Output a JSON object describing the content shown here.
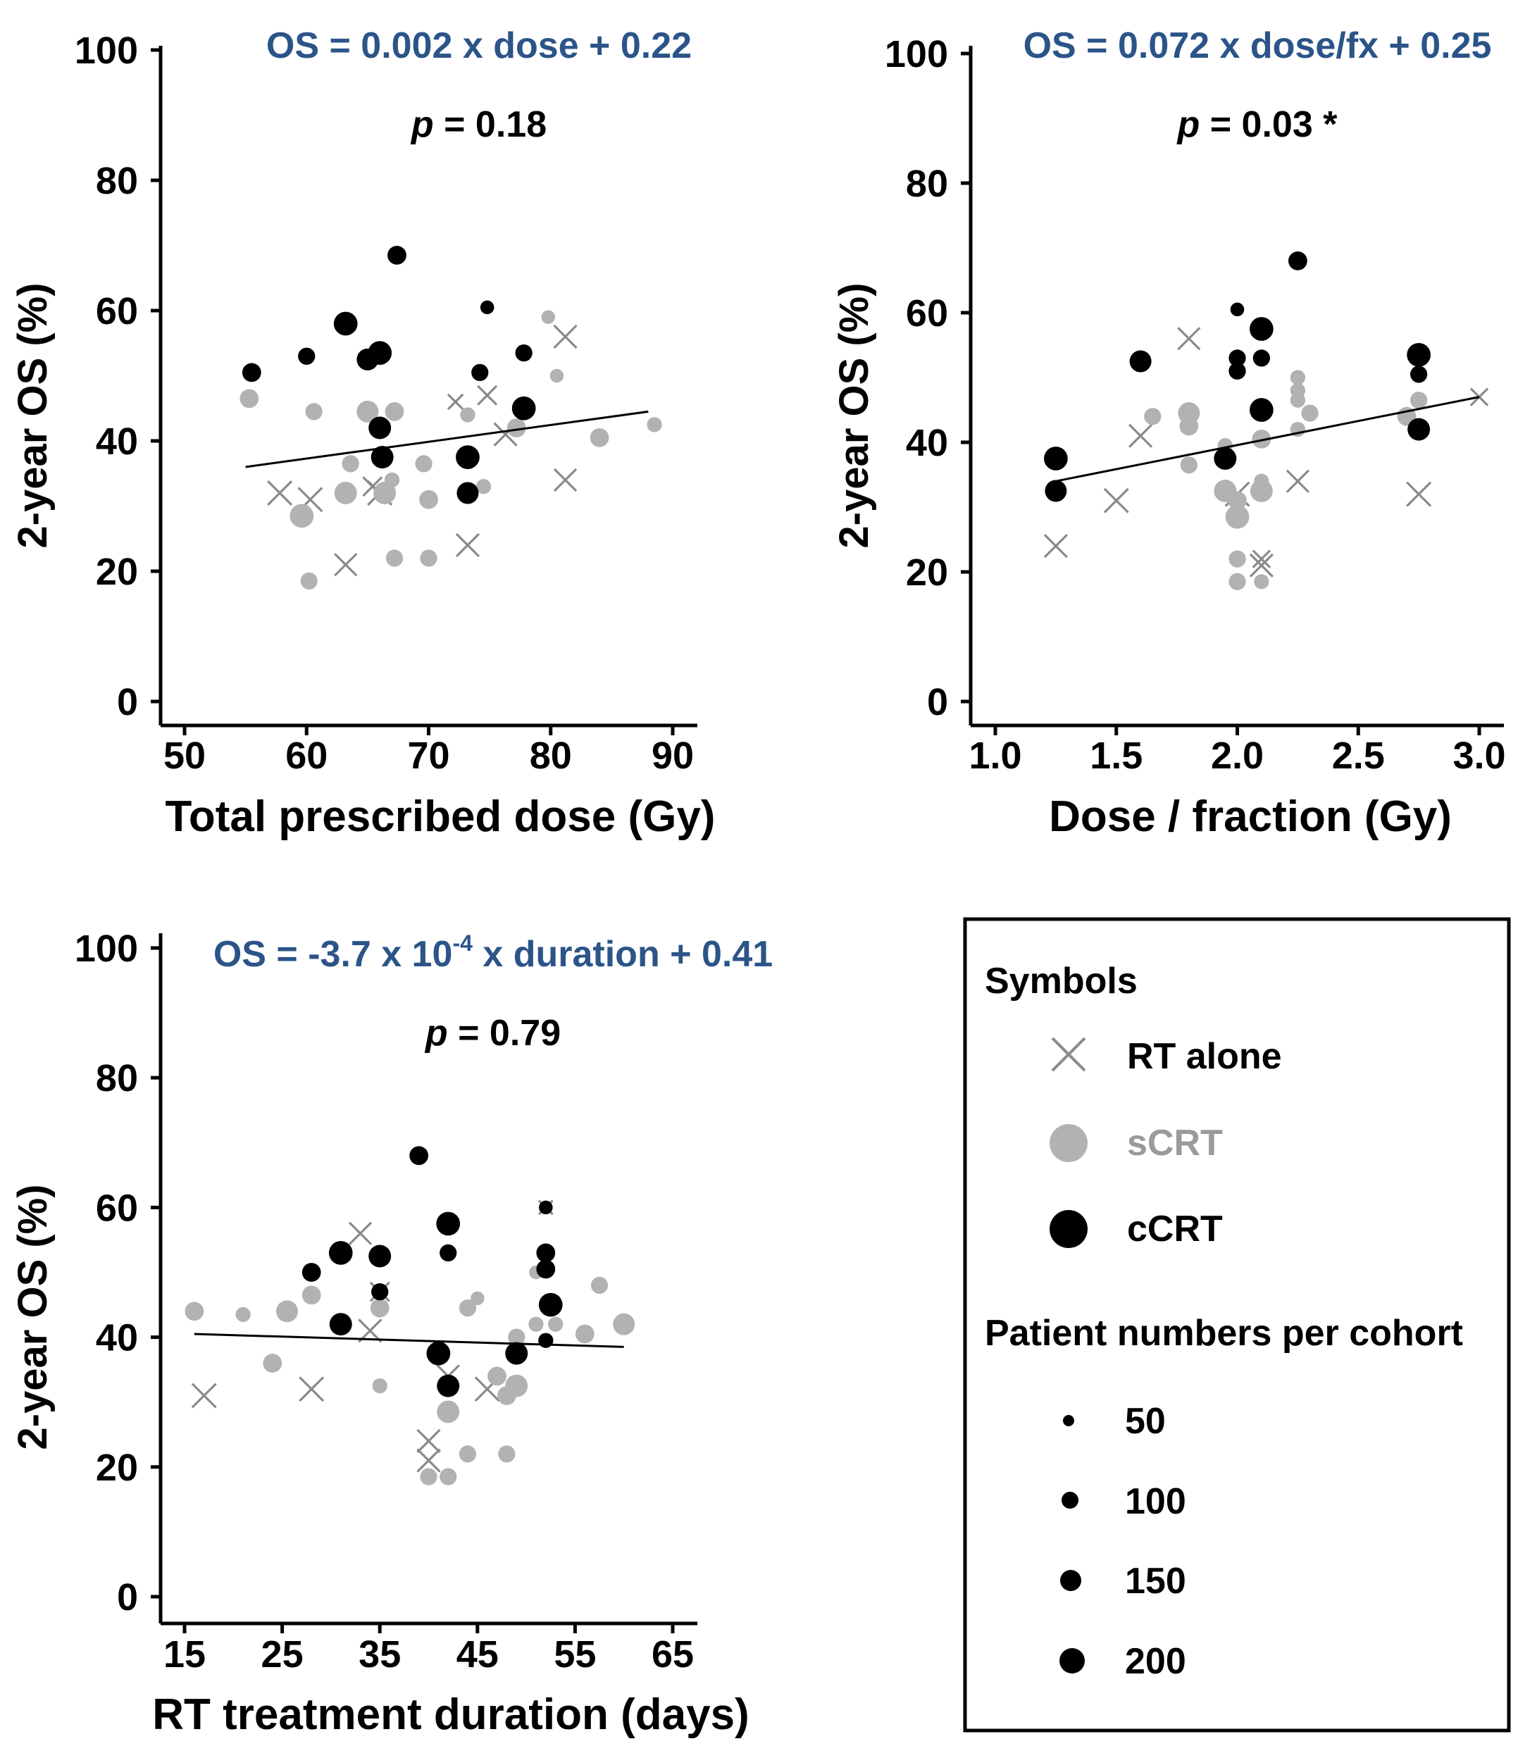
{
  "colors": {
    "rt": "#8a8a8a",
    "scrt": "#b2b2b2",
    "ccrt": "#000000",
    "equation": "#2b5488"
  },
  "chart_data": [
    {
      "type": "scatter",
      "xlabel": "Total prescribed dose (Gy)",
      "ylabel": "2-year OS (%)",
      "xlim": [
        50,
        90
      ],
      "ylim": [
        0,
        100
      ],
      "xticks": [
        50,
        60,
        70,
        80,
        90
      ],
      "yticks": [
        0,
        20,
        40,
        60,
        80,
        100
      ],
      "equation": "OS = 0.002 x dose + 0.22",
      "p_label": "p",
      "p_value": " = 0.18",
      "trend": {
        "x": [
          55,
          88
        ],
        "y": [
          36,
          44.5
        ]
      },
      "series": [
        {
          "name": "RT alone",
          "marker": "x",
          "points": [
            {
              "x": 57.8,
              "y": 32,
              "n": 150
            },
            {
              "x": 60.3,
              "y": 31,
              "n": 150
            },
            {
              "x": 63.2,
              "y": 21,
              "n": 120
            },
            {
              "x": 66,
              "y": 32,
              "n": 150
            },
            {
              "x": 73.2,
              "y": 24,
              "n": 130
            },
            {
              "x": 74.8,
              "y": 47,
              "n": 80
            },
            {
              "x": 76.3,
              "y": 41,
              "n": 130
            },
            {
              "x": 81.2,
              "y": 56,
              "n": 130
            },
            {
              "x": 81.2,
              "y": 34,
              "n": 120
            },
            {
              "x": 72.2,
              "y": 46,
              "n": 40
            },
            {
              "x": 65.4,
              "y": 33,
              "n": 80
            }
          ]
        },
        {
          "name": "sCRT",
          "marker": "circle",
          "points": [
            {
              "x": 55.3,
              "y": 46.5,
              "n": 80
            },
            {
              "x": 59.6,
              "y": 28.5,
              "n": 150
            },
            {
              "x": 60.2,
              "y": 18.5,
              "n": 60
            },
            {
              "x": 60.6,
              "y": 44.5,
              "n": 60
            },
            {
              "x": 63.2,
              "y": 32,
              "n": 130
            },
            {
              "x": 63.6,
              "y": 36.5,
              "n": 60
            },
            {
              "x": 65,
              "y": 44.5,
              "n": 120
            },
            {
              "x": 66.4,
              "y": 32,
              "n": 130
            },
            {
              "x": 67,
              "y": 34,
              "n": 40
            },
            {
              "x": 67.2,
              "y": 44.5,
              "n": 80
            },
            {
              "x": 67.2,
              "y": 22,
              "n": 60
            },
            {
              "x": 69.6,
              "y": 36.5,
              "n": 60
            },
            {
              "x": 70,
              "y": 31,
              "n": 80
            },
            {
              "x": 70,
              "y": 22,
              "n": 60
            },
            {
              "x": 73.2,
              "y": 44,
              "n": 40
            },
            {
              "x": 74.5,
              "y": 33,
              "n": 40
            },
            {
              "x": 77.2,
              "y": 42,
              "n": 80
            },
            {
              "x": 80.5,
              "y": 50,
              "n": 30
            },
            {
              "x": 84,
              "y": 40.5,
              "n": 80
            },
            {
              "x": 88.5,
              "y": 42.5,
              "n": 40
            },
            {
              "x": 79.8,
              "y": 59,
              "n": 30
            }
          ]
        },
        {
          "name": "cCRT",
          "marker": "circle",
          "points": [
            {
              "x": 55.5,
              "y": 50.5,
              "n": 80
            },
            {
              "x": 60,
              "y": 53,
              "n": 60
            },
            {
              "x": 63.2,
              "y": 58,
              "n": 150
            },
            {
              "x": 65,
              "y": 52.5,
              "n": 120
            },
            {
              "x": 66,
              "y": 53.5,
              "n": 150
            },
            {
              "x": 66,
              "y": 42,
              "n": 130
            },
            {
              "x": 66.2,
              "y": 37.5,
              "n": 130
            },
            {
              "x": 67.4,
              "y": 68.5,
              "n": 80
            },
            {
              "x": 73.2,
              "y": 37.5,
              "n": 150
            },
            {
              "x": 73.2,
              "y": 32,
              "n": 120
            },
            {
              "x": 74.2,
              "y": 50.5,
              "n": 60
            },
            {
              "x": 74.8,
              "y": 60.5,
              "n": 30
            },
            {
              "x": 77.8,
              "y": 45,
              "n": 150
            },
            {
              "x": 77.8,
              "y": 53.5,
              "n": 60
            }
          ]
        }
      ]
    },
    {
      "type": "scatter",
      "xlabel": "Dose / fraction (Gy)",
      "ylabel": "2-year OS (%)",
      "xlim": [
        1.0,
        3.0
      ],
      "ylim": [
        0,
        100
      ],
      "xticks": [
        1.0,
        1.5,
        2.0,
        2.5,
        3.0
      ],
      "yticks": [
        0,
        20,
        40,
        60,
        80,
        100
      ],
      "equation": "OS = 0.072 x dose/fx + 0.25",
      "p_label": "p",
      "p_value": " = 0.03 *",
      "trend": {
        "x": [
          1.25,
          3.0
        ],
        "y": [
          34,
          47
        ]
      },
      "series": [
        {
          "name": "RT alone",
          "marker": "x",
          "points": [
            {
              "x": 1.25,
              "y": 24,
              "n": 130
            },
            {
              "x": 1.5,
              "y": 31,
              "n": 150
            },
            {
              "x": 1.6,
              "y": 41,
              "n": 130
            },
            {
              "x": 1.8,
              "y": 56,
              "n": 120
            },
            {
              "x": 2.0,
              "y": 32,
              "n": 150
            },
            {
              "x": 2.1,
              "y": 21,
              "n": 130
            },
            {
              "x": 2.25,
              "y": 34,
              "n": 120
            },
            {
              "x": 2.75,
              "y": 32,
              "n": 150
            },
            {
              "x": 3.0,
              "y": 47,
              "n": 60
            },
            {
              "x": 2.1,
              "y": 22,
              "n": 60
            }
          ]
        },
        {
          "name": "sCRT",
          "marker": "circle",
          "points": [
            {
              "x": 1.65,
              "y": 44,
              "n": 60
            },
            {
              "x": 1.8,
              "y": 44.5,
              "n": 120
            },
            {
              "x": 1.8,
              "y": 42.5,
              "n": 80
            },
            {
              "x": 1.8,
              "y": 36.5,
              "n": 60
            },
            {
              "x": 1.95,
              "y": 32.5,
              "n": 130
            },
            {
              "x": 2.0,
              "y": 28.5,
              "n": 150
            },
            {
              "x": 2.0,
              "y": 31,
              "n": 80
            },
            {
              "x": 2.0,
              "y": 22,
              "n": 60
            },
            {
              "x": 2.0,
              "y": 18.5,
              "n": 60
            },
            {
              "x": 2.1,
              "y": 32.5,
              "n": 130
            },
            {
              "x": 2.1,
              "y": 40.5,
              "n": 80
            },
            {
              "x": 2.1,
              "y": 34,
              "n": 40
            },
            {
              "x": 2.1,
              "y": 18.5,
              "n": 40
            },
            {
              "x": 2.25,
              "y": 50,
              "n": 40
            },
            {
              "x": 2.25,
              "y": 48,
              "n": 40
            },
            {
              "x": 2.25,
              "y": 46.5,
              "n": 40
            },
            {
              "x": 2.3,
              "y": 44.5,
              "n": 60
            },
            {
              "x": 2.25,
              "y": 42,
              "n": 40
            },
            {
              "x": 2.7,
              "y": 44,
              "n": 80
            },
            {
              "x": 2.75,
              "y": 46.5,
              "n": 60
            },
            {
              "x": 1.95,
              "y": 39.5,
              "n": 40
            }
          ]
        },
        {
          "name": "cCRT",
          "marker": "circle",
          "points": [
            {
              "x": 1.25,
              "y": 37.5,
              "n": 150
            },
            {
              "x": 1.25,
              "y": 32.5,
              "n": 120
            },
            {
              "x": 1.6,
              "y": 52.5,
              "n": 120
            },
            {
              "x": 1.95,
              "y": 37.5,
              "n": 130
            },
            {
              "x": 2.0,
              "y": 60.5,
              "n": 30
            },
            {
              "x": 2.0,
              "y": 53,
              "n": 60
            },
            {
              "x": 2.0,
              "y": 51,
              "n": 60
            },
            {
              "x": 2.1,
              "y": 57.5,
              "n": 150
            },
            {
              "x": 2.1,
              "y": 53,
              "n": 60
            },
            {
              "x": 2.1,
              "y": 45,
              "n": 150
            },
            {
              "x": 2.25,
              "y": 68,
              "n": 80
            },
            {
              "x": 2.75,
              "y": 53.5,
              "n": 150
            },
            {
              "x": 2.75,
              "y": 50.5,
              "n": 60
            },
            {
              "x": 2.75,
              "y": 42,
              "n": 130
            }
          ]
        }
      ]
    },
    {
      "type": "scatter",
      "xlabel": "RT treatment duration (days)",
      "ylabel": "2-year OS (%)",
      "xlim": [
        15,
        65
      ],
      "ylim": [
        0,
        100
      ],
      "xticks": [
        15,
        25,
        35,
        45,
        55,
        65
      ],
      "yticks": [
        0,
        20,
        40,
        60,
        80,
        100
      ],
      "equation_parts": [
        "OS = -3.7 x 10",
        "-4",
        " x duration + 0.41"
      ],
      "p_label": "p",
      "p_value": " = 0.79",
      "trend": {
        "x": [
          16,
          60
        ],
        "y": [
          40.5,
          38.5
        ]
      },
      "series": [
        {
          "name": "RT alone",
          "marker": "x",
          "points": [
            {
              "x": 17,
              "y": 31,
              "n": 150
            },
            {
              "x": 28,
              "y": 32,
              "n": 150
            },
            {
              "x": 33,
              "y": 56,
              "n": 120
            },
            {
              "x": 34,
              "y": 41,
              "n": 130
            },
            {
              "x": 35,
              "y": 47,
              "n": 80
            },
            {
              "x": 40,
              "y": 24,
              "n": 130
            },
            {
              "x": 40,
              "y": 21,
              "n": 130
            },
            {
              "x": 42,
              "y": 34,
              "n": 120
            },
            {
              "x": 46,
              "y": 32,
              "n": 150
            },
            {
              "x": 52,
              "y": 60,
              "n": 30
            }
          ]
        },
        {
          "name": "sCRT",
          "marker": "circle",
          "points": [
            {
              "x": 16,
              "y": 44,
              "n": 80
            },
            {
              "x": 21,
              "y": 43.5,
              "n": 40
            },
            {
              "x": 24,
              "y": 36,
              "n": 80
            },
            {
              "x": 25.5,
              "y": 44,
              "n": 120
            },
            {
              "x": 28,
              "y": 46.5,
              "n": 80
            },
            {
              "x": 35,
              "y": 44.5,
              "n": 80
            },
            {
              "x": 35,
              "y": 32.5,
              "n": 40
            },
            {
              "x": 40,
              "y": 18.5,
              "n": 60
            },
            {
              "x": 42,
              "y": 28.5,
              "n": 130
            },
            {
              "x": 42,
              "y": 18.5,
              "n": 60
            },
            {
              "x": 44,
              "y": 44.5,
              "n": 60
            },
            {
              "x": 44,
              "y": 22,
              "n": 60
            },
            {
              "x": 45,
              "y": 46,
              "n": 30
            },
            {
              "x": 47,
              "y": 34,
              "n": 80
            },
            {
              "x": 48,
              "y": 31,
              "n": 80
            },
            {
              "x": 48,
              "y": 22,
              "n": 60
            },
            {
              "x": 49,
              "y": 32.5,
              "n": 130
            },
            {
              "x": 49,
              "y": 40,
              "n": 60
            },
            {
              "x": 51,
              "y": 50,
              "n": 30
            },
            {
              "x": 51,
              "y": 42,
              "n": 40
            },
            {
              "x": 53,
              "y": 42,
              "n": 40
            },
            {
              "x": 56,
              "y": 40.5,
              "n": 80
            },
            {
              "x": 57.5,
              "y": 48,
              "n": 60
            },
            {
              "x": 60,
              "y": 42,
              "n": 120
            }
          ]
        },
        {
          "name": "cCRT",
          "marker": "circle",
          "points": [
            {
              "x": 28,
              "y": 50,
              "n": 80
            },
            {
              "x": 31,
              "y": 53,
              "n": 150
            },
            {
              "x": 31,
              "y": 42,
              "n": 130
            },
            {
              "x": 35,
              "y": 52.5,
              "n": 130
            },
            {
              "x": 35,
              "y": 47,
              "n": 60
            },
            {
              "x": 39,
              "y": 68,
              "n": 80
            },
            {
              "x": 41,
              "y": 37.5,
              "n": 150
            },
            {
              "x": 42,
              "y": 57.5,
              "n": 150
            },
            {
              "x": 42,
              "y": 53,
              "n": 60
            },
            {
              "x": 42,
              "y": 32.5,
              "n": 130
            },
            {
              "x": 49,
              "y": 37.5,
              "n": 130
            },
            {
              "x": 52,
              "y": 53,
              "n": 80
            },
            {
              "x": 52,
              "y": 50.5,
              "n": 80
            },
            {
              "x": 52,
              "y": 39.5,
              "n": 40
            },
            {
              "x": 52.5,
              "y": 45,
              "n": 150
            },
            {
              "x": 52,
              "y": 60,
              "n": 30
            }
          ]
        }
      ]
    }
  ],
  "legend": {
    "symbols_title": "Symbols",
    "items": [
      {
        "label": "RT alone",
        "marker": "x"
      },
      {
        "label": "sCRT",
        "marker": "circle-grey"
      },
      {
        "label": "cCRT",
        "marker": "circle-black"
      }
    ],
    "sizes_title": "Patient numbers per cohort",
    "sizes": [
      {
        "label": "50",
        "n": 50
      },
      {
        "label": "100",
        "n": 100
      },
      {
        "label": "150",
        "n": 150
      },
      {
        "label": "200",
        "n": 200
      }
    ]
  }
}
